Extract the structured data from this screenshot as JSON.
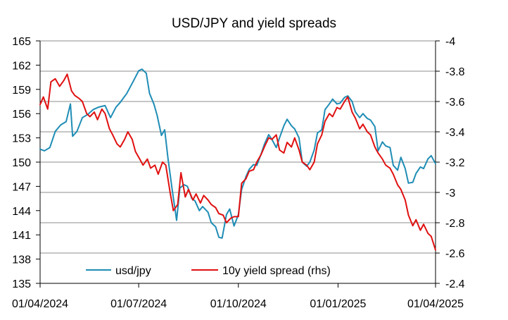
{
  "chart_data": {
    "type": "line",
    "title": "USD/JPY and yield spreads",
    "x_axis": {
      "type": "date",
      "range": [
        "2024-04-01",
        "2025-04-01"
      ],
      "tick_labels": [
        "01/04/2024",
        "01/07/2024",
        "01/10/2024",
        "01/01/2025",
        "01/04/2025"
      ],
      "tick_dates": [
        "2024-04-01",
        "2024-07-01",
        "2024-10-01",
        "2025-01-01",
        "2025-04-01"
      ]
    },
    "y_left": {
      "range": [
        135,
        165
      ],
      "ticks": [
        135,
        138,
        141,
        144,
        147,
        150,
        153,
        156,
        159,
        162,
        165
      ]
    },
    "y_right": {
      "range": [
        -2.4,
        -4.0
      ],
      "ticks": [
        -2.4,
        -2.6,
        -2.8,
        -3,
        -3.2,
        -3.4,
        -3.6,
        -3.8,
        -4
      ],
      "tick_labels": [
        "-2.4",
        "-2.6",
        "-2.8",
        "-3",
        "-3.2",
        "-3.4",
        "-3.6",
        "-3.8",
        "-4"
      ]
    },
    "grid": "horizontal lines at right-axis ticks",
    "legend": {
      "placement": "bottom-inside",
      "entries": [
        "usd/jpy",
        "10y yield spread (rhs)"
      ]
    },
    "series": [
      {
        "name": "usd/jpy",
        "axis": "left",
        "color": "#1F8DB5",
        "points": [
          [
            "2024-04-01",
            151.6
          ],
          [
            "2024-04-05",
            151.4
          ],
          [
            "2024-04-10",
            151.8
          ],
          [
            "2024-04-15",
            153.8
          ],
          [
            "2024-04-20",
            154.6
          ],
          [
            "2024-04-25",
            155.0
          ],
          [
            "2024-04-29",
            157.2
          ],
          [
            "2024-05-01",
            153.2
          ],
          [
            "2024-05-05",
            153.8
          ],
          [
            "2024-05-10",
            155.5
          ],
          [
            "2024-05-15",
            155.9
          ],
          [
            "2024-05-20",
            156.5
          ],
          [
            "2024-05-25",
            156.8
          ],
          [
            "2024-05-31",
            157.0
          ],
          [
            "2024-06-05",
            155.5
          ],
          [
            "2024-06-10",
            156.8
          ],
          [
            "2024-06-14",
            157.4
          ],
          [
            "2024-06-20",
            158.5
          ],
          [
            "2024-06-26",
            160.0
          ],
          [
            "2024-07-01",
            161.3
          ],
          [
            "2024-07-04",
            161.5
          ],
          [
            "2024-07-08",
            161.0
          ],
          [
            "2024-07-11",
            158.5
          ],
          [
            "2024-07-15",
            157.2
          ],
          [
            "2024-07-18",
            155.8
          ],
          [
            "2024-07-22",
            153.3
          ],
          [
            "2024-07-25",
            154.0
          ],
          [
            "2024-07-28",
            150.5
          ],
          [
            "2024-08-01",
            146.5
          ],
          [
            "2024-08-05",
            142.8
          ],
          [
            "2024-08-08",
            146.8
          ],
          [
            "2024-08-12",
            147.2
          ],
          [
            "2024-08-15",
            147.0
          ],
          [
            "2024-08-19",
            145.5
          ],
          [
            "2024-08-22",
            145.2
          ],
          [
            "2024-08-26",
            144.0
          ],
          [
            "2024-08-29",
            144.5
          ],
          [
            "2024-09-03",
            143.8
          ],
          [
            "2024-09-06",
            142.5
          ],
          [
            "2024-09-10",
            142.0
          ],
          [
            "2024-09-13",
            140.7
          ],
          [
            "2024-09-16",
            140.6
          ],
          [
            "2024-09-20",
            143.5
          ],
          [
            "2024-09-23",
            144.2
          ],
          [
            "2024-09-27",
            142.1
          ],
          [
            "2024-10-01",
            143.5
          ],
          [
            "2024-10-04",
            146.6
          ],
          [
            "2024-10-08",
            148.2
          ],
          [
            "2024-10-11",
            149.1
          ],
          [
            "2024-10-15",
            149.7
          ],
          [
            "2024-10-18",
            149.6
          ],
          [
            "2024-10-22",
            151.0
          ],
          [
            "2024-10-25",
            152.2
          ],
          [
            "2024-10-29",
            153.4
          ],
          [
            "2024-11-01",
            152.8
          ],
          [
            "2024-11-05",
            151.8
          ],
          [
            "2024-11-08",
            153.0
          ],
          [
            "2024-11-12",
            154.5
          ],
          [
            "2024-11-15",
            155.3
          ],
          [
            "2024-11-19",
            154.5
          ],
          [
            "2024-11-22",
            154.1
          ],
          [
            "2024-11-26",
            153.0
          ],
          [
            "2024-11-29",
            150.0
          ],
          [
            "2024-12-03",
            149.5
          ],
          [
            "2024-12-06",
            150.0
          ],
          [
            "2024-12-10",
            151.5
          ],
          [
            "2024-12-13",
            153.6
          ],
          [
            "2024-12-17",
            154.0
          ],
          [
            "2024-12-20",
            156.5
          ],
          [
            "2024-12-24",
            157.2
          ],
          [
            "2024-12-27",
            157.8
          ],
          [
            "2024-12-31",
            157.2
          ],
          [
            "2025-01-03",
            157.3
          ],
          [
            "2025-01-07",
            158.0
          ],
          [
            "2025-01-10",
            158.2
          ],
          [
            "2025-01-14",
            157.5
          ],
          [
            "2025-01-17",
            156.2
          ],
          [
            "2025-01-21",
            155.5
          ],
          [
            "2025-01-24",
            156.0
          ],
          [
            "2025-01-28",
            155.4
          ],
          [
            "2025-01-31",
            155.2
          ],
          [
            "2025-02-04",
            154.4
          ],
          [
            "2025-02-07",
            151.4
          ],
          [
            "2025-02-11",
            152.5
          ],
          [
            "2025-02-14",
            152.0
          ],
          [
            "2025-02-18",
            151.8
          ],
          [
            "2025-02-21",
            149.6
          ],
          [
            "2025-02-25",
            149.0
          ],
          [
            "2025-02-28",
            150.6
          ],
          [
            "2025-03-04",
            149.2
          ],
          [
            "2025-03-07",
            147.4
          ],
          [
            "2025-03-11",
            147.5
          ],
          [
            "2025-03-14",
            148.6
          ],
          [
            "2025-03-18",
            149.4
          ],
          [
            "2025-03-21",
            149.2
          ],
          [
            "2025-03-25",
            150.4
          ],
          [
            "2025-03-28",
            150.8
          ],
          [
            "2025-04-01",
            149.8
          ]
        ]
      },
      {
        "name": "10y yield spread (rhs)",
        "axis": "right",
        "color": "#E01010",
        "points": [
          [
            "2024-04-01",
            -3.58
          ],
          [
            "2024-04-04",
            -3.63
          ],
          [
            "2024-04-08",
            -3.55
          ],
          [
            "2024-04-11",
            -3.73
          ],
          [
            "2024-04-15",
            -3.75
          ],
          [
            "2024-04-19",
            -3.7
          ],
          [
            "2024-04-23",
            -3.74
          ],
          [
            "2024-04-26",
            -3.78
          ],
          [
            "2024-04-30",
            -3.67
          ],
          [
            "2024-05-03",
            -3.64
          ],
          [
            "2024-05-07",
            -3.62
          ],
          [
            "2024-05-10",
            -3.6
          ],
          [
            "2024-05-14",
            -3.52
          ],
          [
            "2024-05-17",
            -3.5
          ],
          [
            "2024-05-21",
            -3.53
          ],
          [
            "2024-05-24",
            -3.48
          ],
          [
            "2024-05-28",
            -3.55
          ],
          [
            "2024-05-31",
            -3.52
          ],
          [
            "2024-06-04",
            -3.42
          ],
          [
            "2024-06-07",
            -3.38
          ],
          [
            "2024-06-11",
            -3.32
          ],
          [
            "2024-06-14",
            -3.3
          ],
          [
            "2024-06-18",
            -3.35
          ],
          [
            "2024-06-21",
            -3.4
          ],
          [
            "2024-06-25",
            -3.35
          ],
          [
            "2024-06-28",
            -3.27
          ],
          [
            "2024-07-02",
            -3.22
          ],
          [
            "2024-07-05",
            -3.18
          ],
          [
            "2024-07-09",
            -3.22
          ],
          [
            "2024-07-12",
            -3.16
          ],
          [
            "2024-07-16",
            -3.18
          ],
          [
            "2024-07-19",
            -3.12
          ],
          [
            "2024-07-23",
            -3.2
          ],
          [
            "2024-07-26",
            -3.18
          ],
          [
            "2024-07-30",
            -3.0
          ],
          [
            "2024-08-02",
            -2.88
          ],
          [
            "2024-08-06",
            -2.92
          ],
          [
            "2024-08-09",
            -3.13
          ],
          [
            "2024-08-13",
            -2.97
          ],
          [
            "2024-08-16",
            -3.02
          ],
          [
            "2024-08-20",
            -2.95
          ],
          [
            "2024-08-23",
            -2.99
          ],
          [
            "2024-08-27",
            -2.93
          ],
          [
            "2024-08-30",
            -2.98
          ],
          [
            "2024-09-03",
            -2.95
          ],
          [
            "2024-09-06",
            -2.92
          ],
          [
            "2024-09-10",
            -2.9
          ],
          [
            "2024-09-13",
            -2.86
          ],
          [
            "2024-09-17",
            -2.85
          ],
          [
            "2024-09-20",
            -2.8
          ],
          [
            "2024-09-24",
            -2.83
          ],
          [
            "2024-09-27",
            -2.84
          ],
          [
            "2024-10-01",
            -2.84
          ],
          [
            "2024-10-04",
            -3.06
          ],
          [
            "2024-10-08",
            -3.09
          ],
          [
            "2024-10-11",
            -3.14
          ],
          [
            "2024-10-15",
            -3.15
          ],
          [
            "2024-10-18",
            -3.2
          ],
          [
            "2024-10-22",
            -3.25
          ],
          [
            "2024-10-25",
            -3.3
          ],
          [
            "2024-10-29",
            -3.36
          ],
          [
            "2024-11-01",
            -3.35
          ],
          [
            "2024-11-05",
            -3.38
          ],
          [
            "2024-11-08",
            -3.28
          ],
          [
            "2024-11-12",
            -3.26
          ],
          [
            "2024-11-15",
            -3.33
          ],
          [
            "2024-11-19",
            -3.3
          ],
          [
            "2024-11-22",
            -3.36
          ],
          [
            "2024-11-26",
            -3.28
          ],
          [
            "2024-11-29",
            -3.2
          ],
          [
            "2024-12-03",
            -3.18
          ],
          [
            "2024-12-06",
            -3.15
          ],
          [
            "2024-12-10",
            -3.2
          ],
          [
            "2024-12-13",
            -3.32
          ],
          [
            "2024-12-17",
            -3.38
          ],
          [
            "2024-12-20",
            -3.47
          ],
          [
            "2024-12-24",
            -3.52
          ],
          [
            "2024-12-27",
            -3.5
          ],
          [
            "2024-12-31",
            -3.56
          ],
          [
            "2025-01-03",
            -3.55
          ],
          [
            "2025-01-07",
            -3.6
          ],
          [
            "2025-01-10",
            -3.63
          ],
          [
            "2025-01-14",
            -3.53
          ],
          [
            "2025-01-17",
            -3.49
          ],
          [
            "2025-01-21",
            -3.42
          ],
          [
            "2025-01-24",
            -3.45
          ],
          [
            "2025-01-28",
            -3.4
          ],
          [
            "2025-01-31",
            -3.38
          ],
          [
            "2025-02-04",
            -3.3
          ],
          [
            "2025-02-07",
            -3.26
          ],
          [
            "2025-02-11",
            -3.22
          ],
          [
            "2025-02-14",
            -3.18
          ],
          [
            "2025-02-18",
            -3.16
          ],
          [
            "2025-02-21",
            -3.12
          ],
          [
            "2025-02-25",
            -3.05
          ],
          [
            "2025-02-28",
            -3.02
          ],
          [
            "2025-03-04",
            -2.95
          ],
          [
            "2025-03-07",
            -2.85
          ],
          [
            "2025-03-11",
            -2.78
          ],
          [
            "2025-03-14",
            -2.82
          ],
          [
            "2025-03-18",
            -2.75
          ],
          [
            "2025-03-21",
            -2.79
          ],
          [
            "2025-03-25",
            -2.73
          ],
          [
            "2025-03-28",
            -2.71
          ],
          [
            "2025-04-01",
            -2.62
          ]
        ]
      }
    ]
  }
}
